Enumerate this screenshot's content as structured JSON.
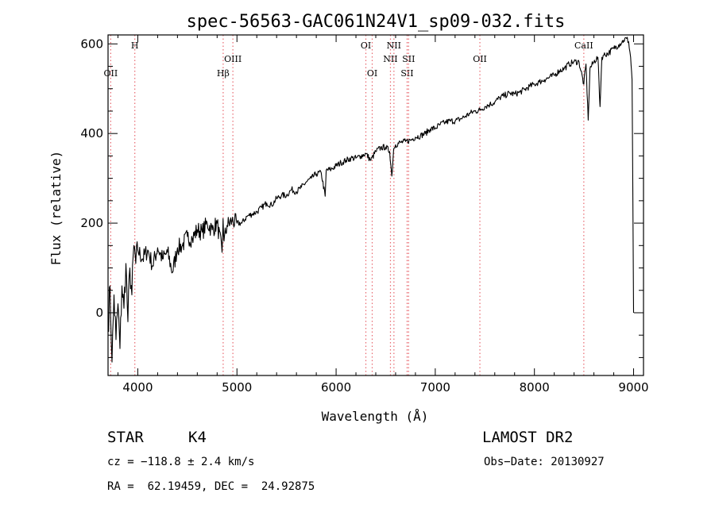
{
  "chart_data": {
    "type": "line",
    "title": "spec-56563-GAC061N24V1_sp09-032.fits",
    "xlabel": "Wavelength (Å)",
    "ylabel": "Flux (relative)",
    "xlim": [
      3700,
      9100
    ],
    "ylim": [
      -140,
      620
    ],
    "xticks": [
      4000,
      5000,
      6000,
      7000,
      8000,
      9000
    ],
    "yticks": [
      0,
      200,
      400,
      600
    ],
    "line_color": "#000000",
    "marker_color": "#e8686f",
    "series": [
      {
        "x": [
          3700,
          3720,
          3740,
          3760,
          3780,
          3800,
          3820,
          3840,
          3860,
          3880,
          3900,
          3920,
          3940,
          3960,
          3980,
          4000,
          4050,
          4100,
          4150,
          4200,
          4250,
          4300,
          4350,
          4400,
          4450,
          4500,
          4550,
          4600,
          4650,
          4700,
          4750,
          4800,
          4850,
          4860,
          4870,
          4900,
          4950,
          5000,
          5050,
          5100,
          5150,
          5200,
          5250,
          5300,
          5350,
          5400,
          5450,
          5500,
          5550,
          5600,
          5650,
          5700,
          5750,
          5800,
          5850,
          5890,
          5900,
          5950,
          6000,
          6050,
          6100,
          6150,
          6200,
          6250,
          6300,
          6350,
          6400,
          6450,
          6500,
          6540,
          6562,
          6580,
          6600,
          6650,
          6700,
          6750,
          6800,
          6850,
          6900,
          6950,
          7000,
          7050,
          7100,
          7150,
          7200,
          7250,
          7300,
          7350,
          7400,
          7450,
          7500,
          7550,
          7600,
          7650,
          7700,
          7750,
          7800,
          7850,
          7900,
          7950,
          8000,
          8050,
          8100,
          8150,
          8200,
          8250,
          8300,
          8350,
          8400,
          8450,
          8498,
          8520,
          8542,
          8560,
          8600,
          8640,
          8662,
          8680,
          8700,
          8750,
          8800,
          8850,
          8900,
          8930,
          8950,
          8970,
          8985,
          9000
        ],
        "y": [
          -40,
          60,
          -110,
          40,
          -60,
          20,
          -80,
          60,
          10,
          110,
          -20,
          100,
          40,
          150,
          110,
          140,
          120,
          140,
          105,
          145,
          120,
          135,
          90,
          145,
          150,
          170,
          165,
          185,
          180,
          200,
          185,
          200,
          135,
          210,
          160,
          195,
          205,
          200,
          200,
          215,
          220,
          225,
          235,
          245,
          240,
          255,
          262,
          262,
          275,
          270,
          280,
          292,
          300,
          310,
          312,
          260,
          318,
          320,
          328,
          335,
          340,
          345,
          345,
          350,
          355,
          340,
          360,
          368,
          370,
          360,
          305,
          365,
          375,
          380,
          382,
          385,
          392,
          395,
          400,
          410,
          412,
          420,
          425,
          428,
          428,
          432,
          438,
          445,
          450,
          452,
          460,
          465,
          470,
          480,
          485,
          490,
          488,
          492,
          498,
          505,
          510,
          515,
          520,
          525,
          530,
          540,
          545,
          555,
          560,
          560,
          510,
          555,
          430,
          545,
          560,
          570,
          460,
          570,
          575,
          580,
          590,
          598,
          608,
          612,
          605,
          570,
          520,
          0
        ]
      }
    ],
    "lines": [
      {
        "label": "OII",
        "x": 3727,
        "row": 3
      },
      {
        "label": "H",
        "x": 3970,
        "row": 1
      },
      {
        "label": "Hβ",
        "x": 4861,
        "row": 3
      },
      {
        "label": "OIII",
        "x": 4959,
        "row": 2
      },
      {
        "label": "OI",
        "x": 6300,
        "row": 1
      },
      {
        "label": "OI",
        "x": 6364,
        "row": 3
      },
      {
        "label": "NII",
        "x": 6548,
        "row": 2
      },
      {
        "label": "NII",
        "x": 6583,
        "row": 1
      },
      {
        "label": "SII",
        "x": 6716,
        "row": 3
      },
      {
        "label": "SII",
        "x": 6731,
        "row": 2
      },
      {
        "label": "OII",
        "x": 7450,
        "row": 2
      },
      {
        "label": "CaII",
        "x": 8498,
        "row": 1
      }
    ]
  },
  "info": {
    "object_class": "STAR",
    "subclass": "K4",
    "survey": "LAMOST DR2",
    "cz": "cz = −118.8 ± 2.4 km/s",
    "obs_date": "Obs−Date: 20130927",
    "coords": "RA =  62.19459, DEC =  24.92875"
  }
}
